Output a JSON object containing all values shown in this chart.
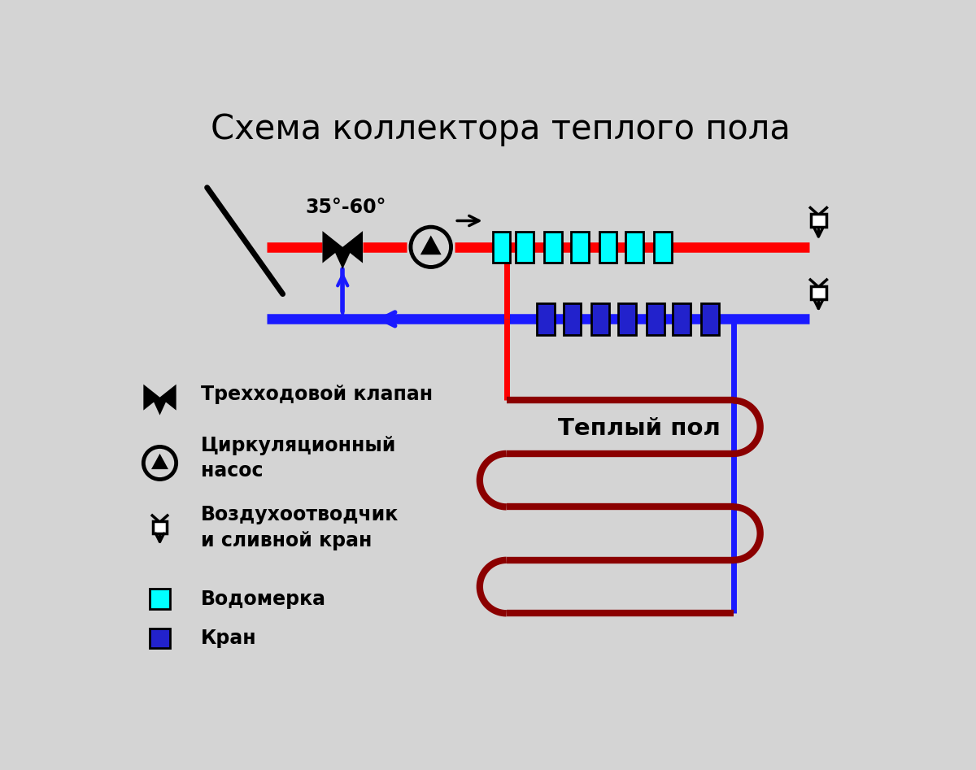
{
  "title": "Схема коллектора теплого пола",
  "bg_color": "#d4d4d4",
  "red_color": "#ff0000",
  "blue_color": "#1a1aff",
  "dark_red_color": "#8b0000",
  "cyan_color": "#00ffff",
  "navy_color": "#2222cc",
  "black_color": "#000000",
  "white_color": "#ffffff",
  "temp_label": "35°-60°",
  "warmfloor_label": "Теплый пол",
  "legend_valve": "Трехходовой клапан",
  "legend_pump": "Циркуляционный\nнасос",
  "legend_drain": "Воздухоотводчик\nи сливной кран",
  "legend_water": "Водомерка",
  "legend_valve2": "Кран",
  "lw_pipe": 9,
  "lw_floor": 6
}
